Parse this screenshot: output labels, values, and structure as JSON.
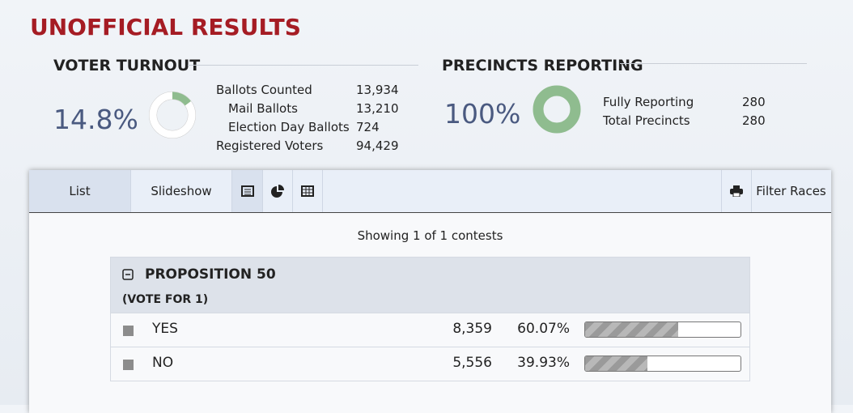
{
  "header": {
    "title": "UNOFFICIAL RESULTS"
  },
  "turnout": {
    "title": "VOTER TURNOUT",
    "percent": "14.8%",
    "stats": [
      [
        "Ballots Counted",
        "13,934"
      ],
      [
        "Mail Ballots",
        "13,210"
      ],
      [
        "Election Day Ballots",
        "724"
      ],
      [
        "Registered Voters",
        "94,429"
      ]
    ]
  },
  "precincts": {
    "title": "PRECINCTS REPORTING",
    "percent": "100%",
    "stats": [
      [
        "Fully Reporting",
        "280"
      ],
      [
        "Total Precincts",
        "280"
      ]
    ]
  },
  "tabs": {
    "list": "List",
    "slideshow": "Slideshow",
    "filter": "Filter Races"
  },
  "summary": "Showing 1 of 1 contests",
  "contest": {
    "name": "PROPOSITION 50",
    "vote_for": "(VOTE FOR 1)",
    "rows": [
      [
        "YES",
        "8,359",
        "60.07%"
      ],
      [
        "NO",
        "5,556",
        "39.93%"
      ]
    ]
  }
}
